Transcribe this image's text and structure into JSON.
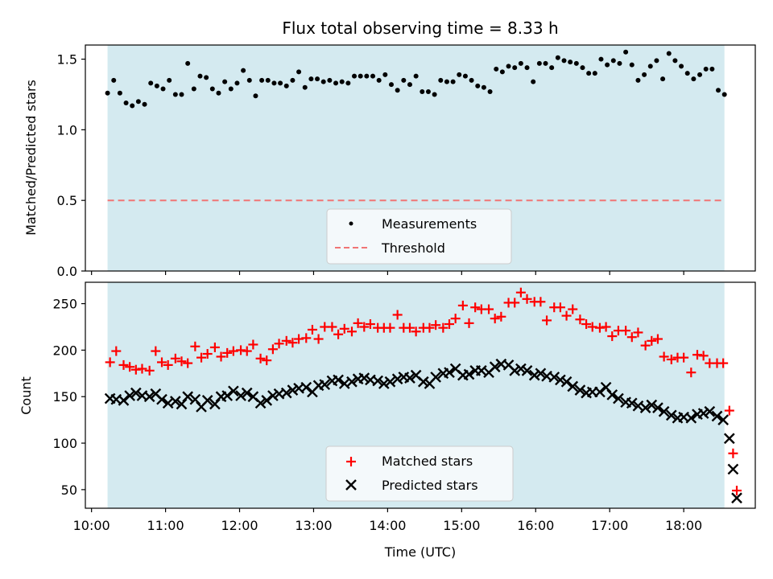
{
  "chart_data": [
    {
      "type": "scatter",
      "title": "Flux total observing time = 8.33 h",
      "xlabel": "",
      "ylabel": "Matched/Predicted stars",
      "xlim": [
        "09:55",
        "18:58"
      ],
      "ylim": [
        0,
        1.6
      ],
      "yticks": [
        0.0,
        0.5,
        1.0,
        1.5
      ],
      "ytick_labels": [
        "0.0",
        "0.5",
        "1.0",
        "1.5"
      ],
      "observing_window": [
        "10:13",
        "18:33"
      ],
      "legend_placement": "lower center",
      "series": [
        {
          "name": "Measurements",
          "marker": "dot",
          "color": "#000000",
          "x": [
            "10:13",
            "10:18",
            "10:23",
            "10:28",
            "10:33",
            "10:38",
            "10:43",
            "10:48",
            "10:53",
            "10:58",
            "11:03",
            "11:08",
            "11:13",
            "11:18",
            "11:23",
            "11:28",
            "11:33",
            "11:38",
            "11:43",
            "11:48",
            "11:53",
            "11:58",
            "12:03",
            "12:08",
            "12:13",
            "12:18",
            "12:23",
            "12:28",
            "12:33",
            "12:38",
            "12:43",
            "12:48",
            "12:53",
            "12:58",
            "13:03",
            "13:08",
            "13:13",
            "13:18",
            "13:23",
            "13:28",
            "13:33",
            "13:38",
            "13:43",
            "13:48",
            "13:53",
            "13:58",
            "14:03",
            "14:08",
            "14:13",
            "14:18",
            "14:23",
            "14:28",
            "14:33",
            "14:38",
            "14:43",
            "14:48",
            "14:53",
            "14:58",
            "15:03",
            "15:08",
            "15:13",
            "15:18",
            "15:23",
            "15:28",
            "15:33",
            "15:38",
            "15:43",
            "15:48",
            "15:53",
            "15:58",
            "16:03",
            "16:08",
            "16:13",
            "16:18",
            "16:23",
            "16:28",
            "16:33",
            "16:38",
            "16:43",
            "16:48",
            "16:53",
            "16:58",
            "17:03",
            "17:08",
            "17:13",
            "17:18",
            "17:23",
            "17:28",
            "17:33",
            "17:38",
            "17:43",
            "17:48",
            "17:53",
            "17:58",
            "18:03",
            "18:08",
            "18:13",
            "18:18",
            "18:23",
            "18:28",
            "18:33"
          ],
          "values": [
            1.26,
            1.35,
            1.26,
            1.19,
            1.17,
            1.2,
            1.18,
            1.33,
            1.31,
            1.29,
            1.35,
            1.25,
            1.25,
            1.47,
            1.29,
            1.38,
            1.37,
            1.29,
            1.26,
            1.34,
            1.29,
            1.33,
            1.42,
            1.35,
            1.24,
            1.35,
            1.35,
            1.33,
            1.33,
            1.31,
            1.35,
            1.41,
            1.3,
            1.36,
            1.36,
            1.34,
            1.35,
            1.33,
            1.34,
            1.33,
            1.38,
            1.38,
            1.38,
            1.38,
            1.35,
            1.39,
            1.32,
            1.28,
            1.35,
            1.32,
            1.38,
            1.27,
            1.27,
            1.25,
            1.35,
            1.34,
            1.34,
            1.39,
            1.38,
            1.35,
            1.31,
            1.3,
            1.27,
            1.43,
            1.41,
            1.45,
            1.44,
            1.47,
            1.44,
            1.34,
            1.47,
            1.47,
            1.44,
            1.51,
            1.49,
            1.48,
            1.47,
            1.44,
            1.4,
            1.4,
            1.5,
            1.46,
            1.49,
            1.47,
            1.55,
            1.46,
            1.35,
            1.39,
            1.45,
            1.49,
            1.36,
            1.54,
            1.49,
            1.45,
            1.4,
            1.36,
            1.39,
            1.43,
            1.43,
            1.28,
            1.25
          ]
        },
        {
          "name": "Threshold",
          "line": "dashed",
          "color": "#f07575",
          "x": [
            "10:13",
            "18:33"
          ],
          "values": [
            0.5,
            0.5
          ]
        }
      ]
    },
    {
      "type": "scatter",
      "title": "",
      "xlabel": "Time (UTC)",
      "ylabel": "Count",
      "xlim": [
        "09:55",
        "18:58"
      ],
      "ylim": [
        30,
        273
      ],
      "yticks": [
        50,
        100,
        150,
        200,
        250
      ],
      "xticks": [
        "10:00",
        "11:00",
        "12:00",
        "13:00",
        "14:00",
        "15:00",
        "16:00",
        "17:00",
        "18:00"
      ],
      "observing_window": [
        "10:13",
        "18:33"
      ],
      "legend_placement": "lower center",
      "series": [
        {
          "name": "Matched stars",
          "marker": "plus",
          "color": "#ff0000",
          "x": [
            "10:15",
            "10:20",
            "10:26",
            "10:31",
            "10:36",
            "10:41",
            "10:47",
            "10:52",
            "10:57",
            "11:02",
            "11:08",
            "11:13",
            "11:18",
            "11:24",
            "11:29",
            "11:34",
            "11:40",
            "11:45",
            "11:50",
            "11:55",
            "12:01",
            "12:06",
            "12:11",
            "12:17",
            "12:22",
            "12:27",
            "12:32",
            "12:38",
            "12:43",
            "12:48",
            "12:54",
            "12:59",
            "13:04",
            "13:09",
            "13:15",
            "13:20",
            "13:25",
            "13:31",
            "13:36",
            "13:41",
            "13:46",
            "13:52",
            "13:57",
            "14:02",
            "14:08",
            "14:13",
            "14:18",
            "14:23",
            "14:29",
            "14:34",
            "14:39",
            "14:45",
            "14:50",
            "14:55",
            "15:01",
            "15:06",
            "15:11",
            "15:16",
            "15:22",
            "15:27",
            "15:32",
            "15:38",
            "15:43",
            "15:48",
            "15:53",
            "15:59",
            "16:04",
            "16:09",
            "16:15",
            "16:20",
            "16:25",
            "16:30",
            "16:36",
            "16:41",
            "16:46",
            "16:52",
            "16:57",
            "17:02",
            "17:07",
            "17:13",
            "17:18",
            "17:23",
            "17:29",
            "17:34",
            "17:39",
            "17:44",
            "17:50",
            "17:55",
            "18:00",
            "18:06",
            "18:11",
            "18:16",
            "18:21",
            "18:27",
            "18:32"
          ],
          "values": [
            187,
            199,
            184,
            182,
            179,
            180,
            178,
            199,
            187,
            184,
            191,
            188,
            186,
            204,
            192,
            196,
            203,
            193,
            197,
            199,
            200,
            199,
            206,
            191,
            189,
            201,
            207,
            210,
            208,
            212,
            213,
            222,
            212,
            225,
            225,
            217,
            223,
            220,
            229,
            225,
            228,
            224,
            224,
            224,
            238,
            224,
            224,
            220,
            224,
            224,
            227,
            224,
            228,
            234,
            248,
            229,
            246,
            244,
            244,
            234,
            236,
            251,
            251,
            262,
            255,
            252,
            252,
            232,
            246,
            246,
            237,
            244,
            233,
            228,
            225,
            224,
            225,
            215,
            221,
            221,
            214,
            219,
            205,
            210,
            212,
            193,
            190,
            192,
            192,
            176,
            195,
            194,
            186,
            186,
            186
          ]
        },
        {
          "name": "Predicted stars",
          "marker": "x",
          "color": "#000000",
          "x": [
            "10:15",
            "10:20",
            "10:26",
            "10:31",
            "10:36",
            "10:41",
            "10:47",
            "10:52",
            "10:57",
            "11:02",
            "11:08",
            "11:13",
            "11:18",
            "11:24",
            "11:29",
            "11:34",
            "11:40",
            "11:45",
            "11:50",
            "11:55",
            "12:01",
            "12:06",
            "12:11",
            "12:17",
            "12:22",
            "12:27",
            "12:32",
            "12:38",
            "12:43",
            "12:48",
            "12:54",
            "12:59",
            "13:04",
            "13:09",
            "13:15",
            "13:20",
            "13:25",
            "13:31",
            "13:36",
            "13:41",
            "13:46",
            "13:52",
            "13:57",
            "14:02",
            "14:08",
            "14:13",
            "14:18",
            "14:23",
            "14:29",
            "14:34",
            "14:39",
            "14:45",
            "14:50",
            "14:55",
            "15:01",
            "15:06",
            "15:11",
            "15:16",
            "15:22",
            "15:27",
            "15:32",
            "15:38",
            "15:43",
            "15:48",
            "15:53",
            "15:59",
            "16:04",
            "16:09",
            "16:15",
            "16:20",
            "16:25",
            "16:30",
            "16:36",
            "16:41",
            "16:46",
            "16:52",
            "16:57",
            "17:02",
            "17:07",
            "17:13",
            "17:18",
            "17:23",
            "17:29",
            "17:34",
            "17:39",
            "17:44",
            "17:50",
            "17:55",
            "18:00",
            "18:06",
            "18:11",
            "18:16",
            "18:21",
            "18:27",
            "18:32"
          ],
          "values": [
            148,
            147,
            146,
            151,
            154,
            151,
            150,
            153,
            147,
            143,
            145,
            142,
            150,
            147,
            139,
            146,
            142,
            150,
            151,
            156,
            151,
            154,
            150,
            143,
            146,
            151,
            153,
            154,
            157,
            159,
            160,
            155,
            162,
            163,
            167,
            168,
            164,
            166,
            169,
            170,
            168,
            167,
            164,
            166,
            169,
            171,
            170,
            173,
            166,
            164,
            171,
            175,
            176,
            180,
            173,
            174,
            178,
            178,
            176,
            182,
            185,
            184,
            178,
            180,
            178,
            173,
            175,
            172,
            171,
            168,
            166,
            161,
            157,
            154,
            155,
            155,
            160,
            152,
            148,
            144,
            143,
            140,
            138,
            141,
            138,
            134,
            130,
            127,
            128,
            127,
            131,
            132,
            134,
            129,
            125
          ]
        }
      ],
      "tail_points": {
        "matched_x": [
          "18:37",
          "18:40",
          "18:43"
        ],
        "matched_values": [
          135,
          89,
          49
        ],
        "predicted_x": [
          "18:37",
          "18:40",
          "18:43"
        ],
        "predicted_values": [
          105,
          72,
          41
        ]
      }
    }
  ],
  "colors": {
    "observing_window": "#d4eaf0",
    "axes": "#000000",
    "legend_background": "#f4f9fb",
    "legend_border": "#cccccc"
  }
}
